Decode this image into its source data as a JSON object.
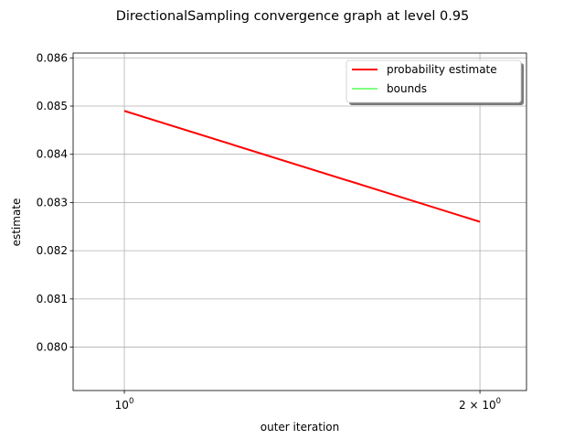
{
  "chart_data": {
    "type": "line",
    "title": "DirectionalSampling convergence graph at level 0.95",
    "xlabel": "outer iteration",
    "ylabel": "estimate",
    "xscale": "log",
    "xlim": [
      0.905,
      2.19
    ],
    "ylim": [
      0.0791,
      0.0861
    ],
    "yticks": [
      0.08,
      0.081,
      0.082,
      0.083,
      0.084,
      0.085,
      0.086
    ],
    "ytick_labels": [
      "0.080",
      "0.081",
      "0.082",
      "0.083",
      "0.084",
      "0.085",
      "0.086"
    ],
    "xticks": [
      1,
      2
    ],
    "xtick_labels": [
      "10",
      "2 × 10"
    ],
    "xtick_exponents": [
      "0",
      "0"
    ],
    "grid": true,
    "legend_position": "top-right",
    "series": [
      {
        "name": "probability estimate",
        "color": "#ff0000",
        "x": [
          1,
          2
        ],
        "values": [
          0.0849,
          0.0826
        ]
      },
      {
        "name": "bounds",
        "color": "#00ff00",
        "x": [],
        "values": []
      }
    ]
  }
}
